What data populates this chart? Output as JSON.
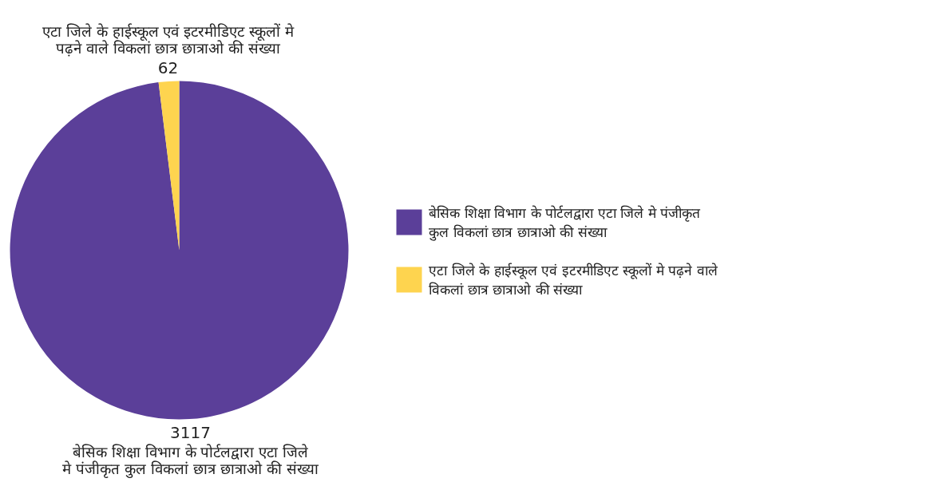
{
  "chart_data": {
    "type": "pie",
    "categories": [
      "बेसिक शिक्षा विभाग के पोर्टलद्वारा एटा जिले मे पंजीकृत कुल विकलां छात्र छात्राओ की संख्या",
      "एटा जिले के हाईस्कूल एवं इटरमीडिएट स्कूलों मे पढ़ने वाले विकलां छात्र छात्राओ की संख्या"
    ],
    "values": [
      3117,
      62
    ],
    "colors": [
      "#5b3f99",
      "#fed44f"
    ],
    "data_labels": true,
    "legend": "right"
  }
}
